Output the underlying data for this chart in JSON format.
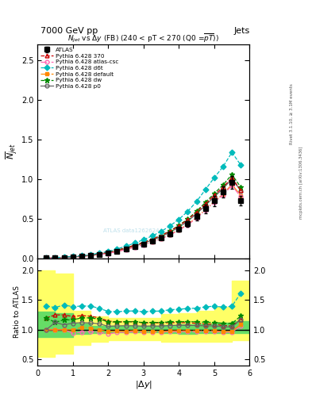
{
  "title_top": "7000 GeV pp",
  "title_top_right": "Jets",
  "plot_title": "$N_{jet}$ vs $\\Delta y$ (FB) (240 < pT < 270 (Q0 =$\\overline{pT}$))",
  "ylabel_main": "$\\overline{N}_{jet}$",
  "ylabel_ratio": "Ratio to ATLAS",
  "xlabel": "$|\\Delta y|$",
  "right_label1": "Rivet 3.1.10, ≥ 3.1M events",
  "right_label2": "mcplots.cern.ch [arXiv:1306.3436]",
  "watermark": "ATLAS data12626244",
  "x": [
    0.25,
    0.5,
    0.75,
    1.0,
    1.25,
    1.5,
    1.75,
    2.0,
    2.25,
    2.5,
    2.75,
    3.0,
    3.25,
    3.5,
    3.75,
    4.0,
    4.25,
    4.5,
    4.75,
    5.0,
    5.25,
    5.5,
    5.75
  ],
  "atlas_y": [
    0.005,
    0.008,
    0.012,
    0.018,
    0.025,
    0.035,
    0.05,
    0.068,
    0.092,
    0.118,
    0.148,
    0.182,
    0.218,
    0.26,
    0.308,
    0.368,
    0.438,
    0.528,
    0.628,
    0.73,
    0.84,
    0.96,
    0.73
  ],
  "atlas_yerr": [
    0.001,
    0.001,
    0.002,
    0.002,
    0.003,
    0.004,
    0.005,
    0.006,
    0.008,
    0.01,
    0.012,
    0.015,
    0.018,
    0.022,
    0.026,
    0.03,
    0.035,
    0.045,
    0.055,
    0.065,
    0.07,
    0.08,
    0.06
  ],
  "p370_y": [
    0.006,
    0.01,
    0.015,
    0.022,
    0.031,
    0.043,
    0.06,
    0.078,
    0.104,
    0.134,
    0.168,
    0.203,
    0.244,
    0.29,
    0.345,
    0.412,
    0.49,
    0.585,
    0.688,
    0.8,
    0.9,
    1.02,
    0.86
  ],
  "atlas_csc_y": [
    0.005,
    0.008,
    0.012,
    0.017,
    0.024,
    0.034,
    0.048,
    0.063,
    0.088,
    0.113,
    0.143,
    0.174,
    0.21,
    0.25,
    0.298,
    0.357,
    0.424,
    0.51,
    0.608,
    0.708,
    0.805,
    0.92,
    0.78
  ],
  "d6t_y": [
    0.007,
    0.011,
    0.017,
    0.025,
    0.035,
    0.049,
    0.068,
    0.089,
    0.12,
    0.155,
    0.195,
    0.237,
    0.286,
    0.342,
    0.412,
    0.495,
    0.595,
    0.72,
    0.87,
    1.02,
    1.16,
    1.34,
    1.18
  ],
  "default_y": [
    0.005,
    0.008,
    0.012,
    0.018,
    0.026,
    0.036,
    0.05,
    0.066,
    0.09,
    0.115,
    0.146,
    0.177,
    0.212,
    0.252,
    0.302,
    0.362,
    0.43,
    0.518,
    0.618,
    0.718,
    0.815,
    0.935,
    0.795
  ],
  "dw_y": [
    0.006,
    0.009,
    0.014,
    0.021,
    0.03,
    0.042,
    0.059,
    0.077,
    0.104,
    0.134,
    0.168,
    0.204,
    0.245,
    0.292,
    0.349,
    0.418,
    0.498,
    0.598,
    0.708,
    0.82,
    0.93,
    1.06,
    0.9
  ],
  "p0_y": [
    0.005,
    0.009,
    0.013,
    0.02,
    0.028,
    0.039,
    0.055,
    0.072,
    0.098,
    0.126,
    0.158,
    0.193,
    0.232,
    0.276,
    0.33,
    0.396,
    0.47,
    0.566,
    0.67,
    0.778,
    0.882,
    1.005,
    0.855
  ],
  "band_x": [
    0.0,
    0.5,
    1.0,
    1.5,
    2.0,
    2.5,
    3.0,
    3.5,
    4.0,
    4.5,
    5.0,
    5.5,
    6.0
  ],
  "green_band_lo": [
    0.88,
    0.88,
    0.93,
    0.95,
    0.96,
    0.96,
    0.96,
    0.94,
    0.93,
    0.94,
    0.94,
    0.95,
    0.95
  ],
  "green_band_hi": [
    1.3,
    1.28,
    1.1,
    1.07,
    1.06,
    1.06,
    1.06,
    1.08,
    1.09,
    1.1,
    1.12,
    1.14,
    1.14
  ],
  "yellow_band_lo": [
    0.55,
    0.6,
    0.75,
    0.8,
    0.82,
    0.83,
    0.83,
    0.8,
    0.8,
    0.8,
    0.8,
    0.82,
    0.82
  ],
  "yellow_band_hi": [
    2.0,
    1.95,
    1.32,
    1.22,
    1.2,
    1.2,
    1.2,
    1.26,
    1.28,
    1.32,
    1.38,
    1.82,
    1.82
  ],
  "colors": {
    "atlas": "#000000",
    "p370": "#cc0000",
    "atlas_csc": "#ff69b4",
    "d6t": "#00bbbb",
    "default": "#ff8800",
    "dw": "#008800",
    "p0": "#666666"
  },
  "ylim_main": [
    0.0,
    2.7
  ],
  "yticks_main": [
    0.0,
    0.5,
    1.0,
    1.5,
    2.0,
    2.5
  ],
  "ylim_ratio": [
    0.4,
    2.2
  ],
  "yticks_ratio": [
    0.5,
    1.0,
    1.5,
    2.0
  ],
  "xlim": [
    0.0,
    6.0
  ],
  "xticks": [
    0,
    1,
    2,
    3,
    4,
    5,
    6
  ]
}
